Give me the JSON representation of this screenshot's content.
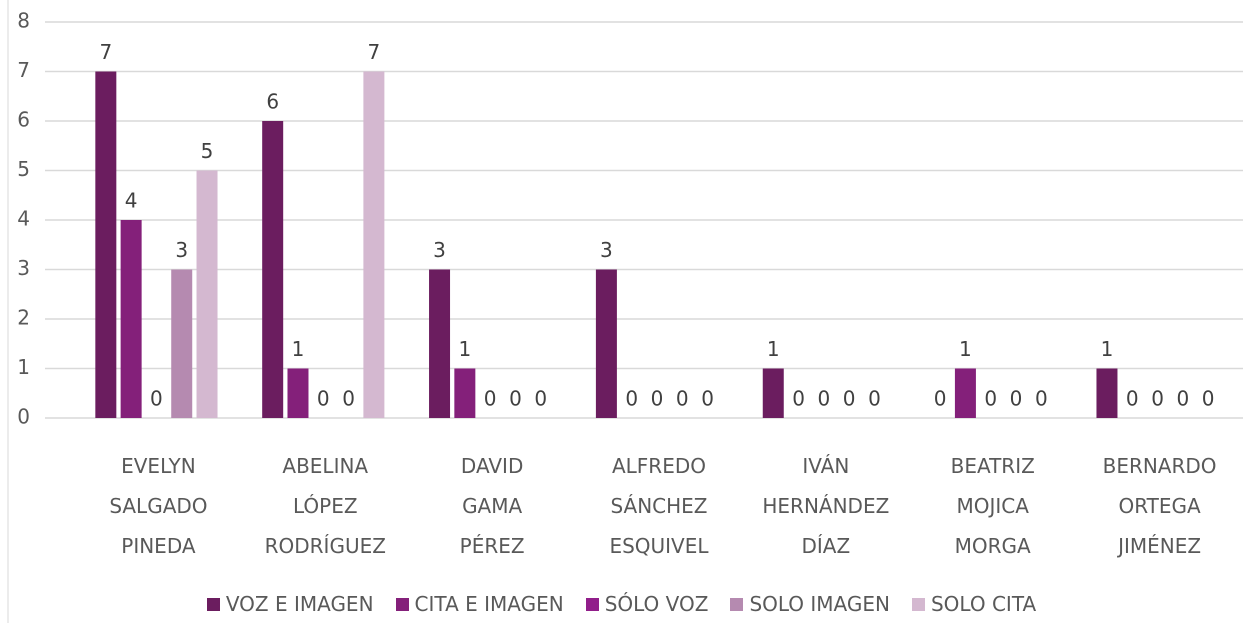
{
  "chart_data": {
    "type": "bar",
    "categories": [
      "EVELYN\nSALGADO\nPINEDA",
      "ABELINA\nLÓPEZ\nRODRÍGUEZ",
      "DAVID\nGAMA\nPÉREZ",
      "ALFREDO\nSÁNCHEZ\nESQUIVEL",
      "IVÁN\nHERNÁNDEZ\nDÍAZ",
      "BEATRIZ\nMOJICA\nMORGA",
      "BERNARDO\nORTEGA\nJIMÉNEZ"
    ],
    "series": [
      {
        "name": "VOZ E IMAGEN",
        "color": "#6b1d5f",
        "values": [
          7,
          6,
          3,
          3,
          1,
          0,
          1
        ]
      },
      {
        "name": "CITA E IMAGEN",
        "color": "#84207a",
        "values": [
          4,
          1,
          1,
          0,
          0,
          1,
          0
        ]
      },
      {
        "name": "SÓLO VOZ",
        "color": "#911e8a",
        "values": [
          0,
          0,
          0,
          0,
          0,
          0,
          0
        ]
      },
      {
        "name": "SOLO IMAGEN",
        "color": "#b58ab0",
        "values": [
          3,
          0,
          0,
          0,
          0,
          0,
          0
        ]
      },
      {
        "name": "SOLO CITA",
        "color": "#d4b8d0",
        "values": [
          5,
          7,
          0,
          0,
          0,
          0,
          0
        ]
      }
    ],
    "ylim": [
      0,
      8
    ],
    "yticks": [
      0,
      1,
      2,
      3,
      4,
      5,
      6,
      7,
      8
    ],
    "grid": true,
    "legend": "bottom"
  }
}
